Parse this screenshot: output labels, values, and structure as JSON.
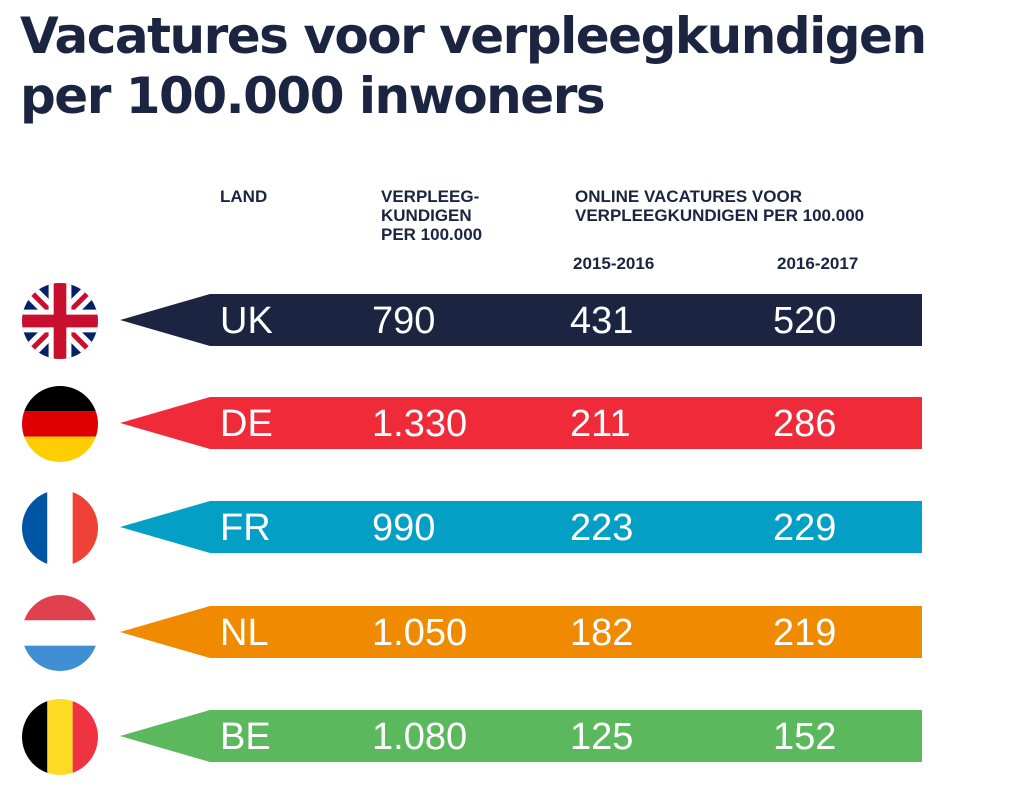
{
  "title": {
    "line1": "Vacatures voor verpleegkundigen",
    "line2": "per 100.000 inwoners"
  },
  "headers": {
    "land": "LAND",
    "nurses": "VERPLEEG-\nKUNDIGEN\nPER 100.000",
    "online": "ONLINE VACATURES VOOR\nVERPLEEGKUNDIGEN PER 100.000",
    "year1": "2015-2016",
    "year2": "2016-2017"
  },
  "rows": [
    {
      "land": "UK",
      "nurses": "790",
      "y2016": "431",
      "y2017": "520",
      "color": "#1b2440",
      "flag_icon": "union-jack-flag-icon"
    },
    {
      "land": "DE",
      "nurses": "1.330",
      "y2016": "211",
      "y2017": "286",
      "color": "#ef2b3a",
      "flag_icon": "germany-flag-icon"
    },
    {
      "land": "FR",
      "nurses": "990",
      "y2016": "223",
      "y2017": "229",
      "color": "#049fc4",
      "flag_icon": "france-flag-icon"
    },
    {
      "land": "NL",
      "nurses": "1.050",
      "y2016": "182",
      "y2017": "219",
      "color": "#f08a00",
      "flag_icon": "netherlands-flag-icon"
    },
    {
      "land": "BE",
      "nurses": "1.080",
      "y2016": "125",
      "y2017": "152",
      "color": "#5cb85c",
      "flag_icon": "belgium-flag-icon"
    }
  ],
  "chart_data": {
    "type": "table",
    "title": "Vacatures voor verpleegkundigen per 100.000 inwoners",
    "columns": [
      "LAND",
      "VERPLEEGKUNDIGEN PER 100.000",
      "2015-2016",
      "2016-2017"
    ],
    "column_group": "ONLINE VACATURES VOOR VERPLEEGKUNDIGEN PER 100.000",
    "rows": [
      [
        "UK",
        "790",
        "431",
        "520"
      ],
      [
        "DE",
        "1.330",
        "211",
        "286"
      ],
      [
        "FR",
        "990",
        "223",
        "229"
      ],
      [
        "NL",
        "1.050",
        "182",
        "219"
      ],
      [
        "BE",
        "1.080",
        "125",
        "152"
      ]
    ]
  }
}
